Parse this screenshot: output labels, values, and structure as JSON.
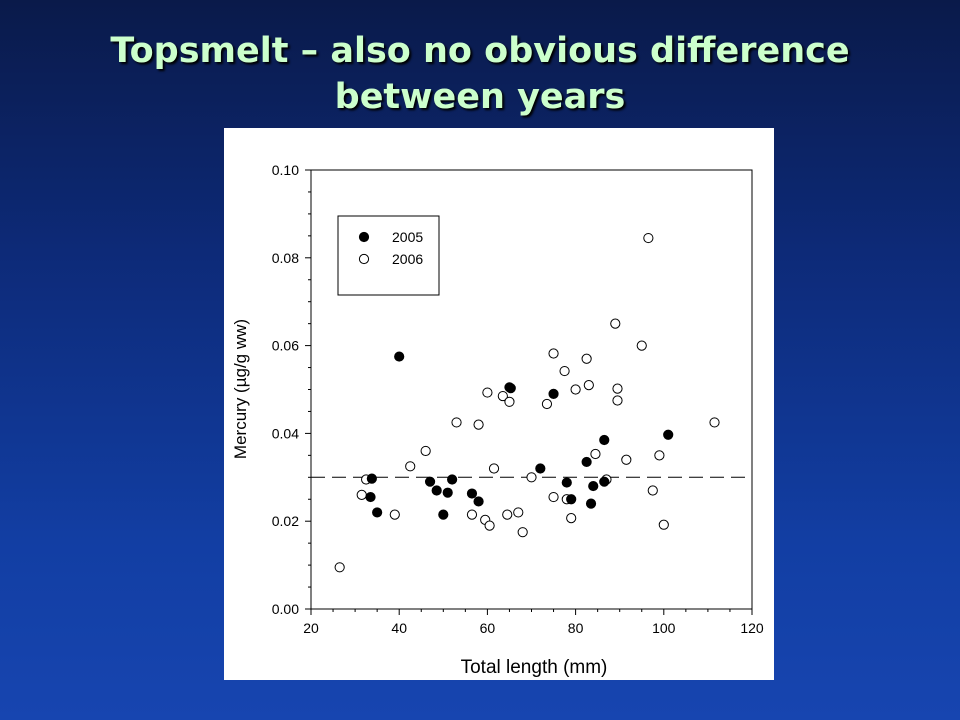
{
  "slide": {
    "title_line1": "Topsmelt – also no obvious difference",
    "title_line2": "between years"
  },
  "chart_data": {
    "type": "scatter",
    "xlabel": "Total length (mm)",
    "ylabel": "Mercury (µg/g ww)",
    "xlim": [
      20,
      120
    ],
    "ylim": [
      0,
      0.1
    ],
    "x_ticks": [
      "20",
      "40",
      "60",
      "80",
      "100",
      "120"
    ],
    "y_ticks": [
      "0.00",
      "0.02",
      "0.04",
      "0.06",
      "0.08",
      "0.10"
    ],
    "grid": false,
    "legend_position": "top-left",
    "reference_line": {
      "y": 0.03,
      "style": "dashed"
    },
    "series": [
      {
        "name": "2005",
        "marker": "filled-circle",
        "color": "#000000",
        "points": [
          [
            33.5,
            0.0255
          ],
          [
            33.8,
            0.0297
          ],
          [
            35,
            0.022
          ],
          [
            40,
            0.0575
          ],
          [
            47,
            0.029
          ],
          [
            48.5,
            0.027
          ],
          [
            50,
            0.0215
          ],
          [
            51,
            0.0265
          ],
          [
            52,
            0.0295
          ],
          [
            56.5,
            0.0263
          ],
          [
            58,
            0.0245
          ],
          [
            65,
            0.0505
          ],
          [
            65.3,
            0.0503
          ],
          [
            72,
            0.032
          ],
          [
            75,
            0.049
          ],
          [
            78,
            0.0288
          ],
          [
            79,
            0.025
          ],
          [
            82.5,
            0.0335
          ],
          [
            83.5,
            0.024
          ],
          [
            84,
            0.028
          ],
          [
            86.5,
            0.0385
          ],
          [
            86.5,
            0.029
          ],
          [
            101,
            0.0397
          ]
        ]
      },
      {
        "name": "2006",
        "marker": "open-circle",
        "color": "#000000",
        "points": [
          [
            26.5,
            0.0095
          ],
          [
            31.5,
            0.026
          ],
          [
            32.5,
            0.0295
          ],
          [
            39,
            0.0215
          ],
          [
            42.5,
            0.0325
          ],
          [
            46,
            0.036
          ],
          [
            53,
            0.0425
          ],
          [
            56.5,
            0.0215
          ],
          [
            58,
            0.042
          ],
          [
            59.5,
            0.0203
          ],
          [
            60,
            0.0493
          ],
          [
            60.5,
            0.019
          ],
          [
            61.5,
            0.032
          ],
          [
            63.5,
            0.0485
          ],
          [
            64.5,
            0.0215
          ],
          [
            65,
            0.0472
          ],
          [
            67,
            0.022
          ],
          [
            68,
            0.0175
          ],
          [
            70,
            0.03
          ],
          [
            73.5,
            0.0467
          ],
          [
            75,
            0.0582
          ],
          [
            75,
            0.0255
          ],
          [
            77.5,
            0.0542
          ],
          [
            78,
            0.025
          ],
          [
            79,
            0.0207
          ],
          [
            80,
            0.05
          ],
          [
            82.5,
            0.057
          ],
          [
            83,
            0.051
          ],
          [
            84.5,
            0.0353
          ],
          [
            87,
            0.0295
          ],
          [
            89,
            0.065
          ],
          [
            89.5,
            0.0502
          ],
          [
            89.5,
            0.0475
          ],
          [
            91.5,
            0.034
          ],
          [
            95,
            0.06
          ],
          [
            96.5,
            0.0845
          ],
          [
            97.5,
            0.027
          ],
          [
            99,
            0.035
          ],
          [
            100,
            0.0192
          ],
          [
            111.5,
            0.0425
          ]
        ]
      }
    ]
  }
}
